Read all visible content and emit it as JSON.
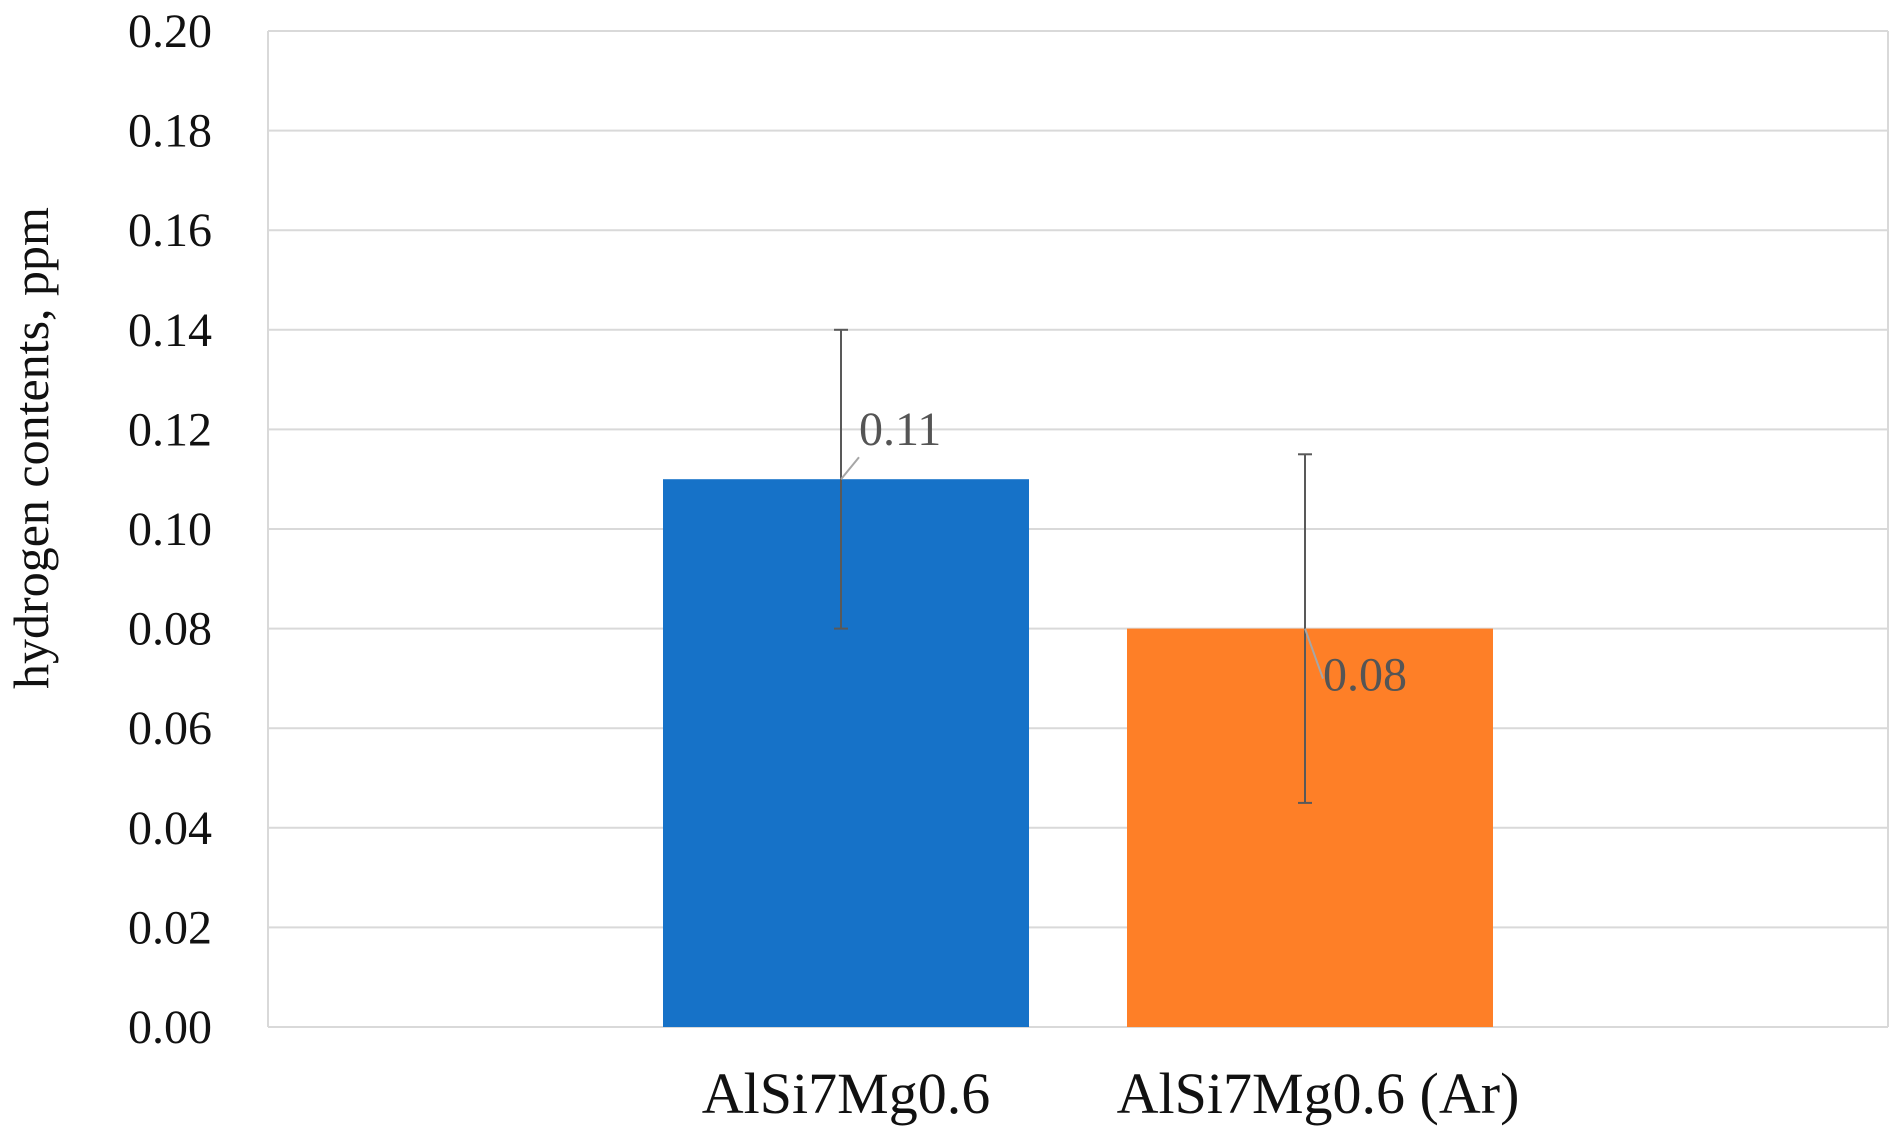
{
  "chart_data": {
    "type": "bar",
    "title": "",
    "xlabel": "",
    "ylabel": "hydrogen contents, ppm",
    "ylim": [
      0,
      0.2
    ],
    "ytick_step": 0.02,
    "ytick_decimals": 2,
    "grid": true,
    "categories": [
      "AlSi7Mg0.6",
      "AlSi7Mg0.6 (Ar)"
    ],
    "values": [
      0.11,
      0.08
    ],
    "data_labels": [
      "0.11",
      "0.08"
    ],
    "error_bars": [
      {
        "low": 0.08,
        "high": 0.14
      },
      {
        "low": 0.045,
        "high": 0.115
      }
    ],
    "colors": [
      "#1672c8",
      "#fe7f27"
    ],
    "grid_color": "#d9d9d9",
    "error_bar_color": "#595959"
  }
}
